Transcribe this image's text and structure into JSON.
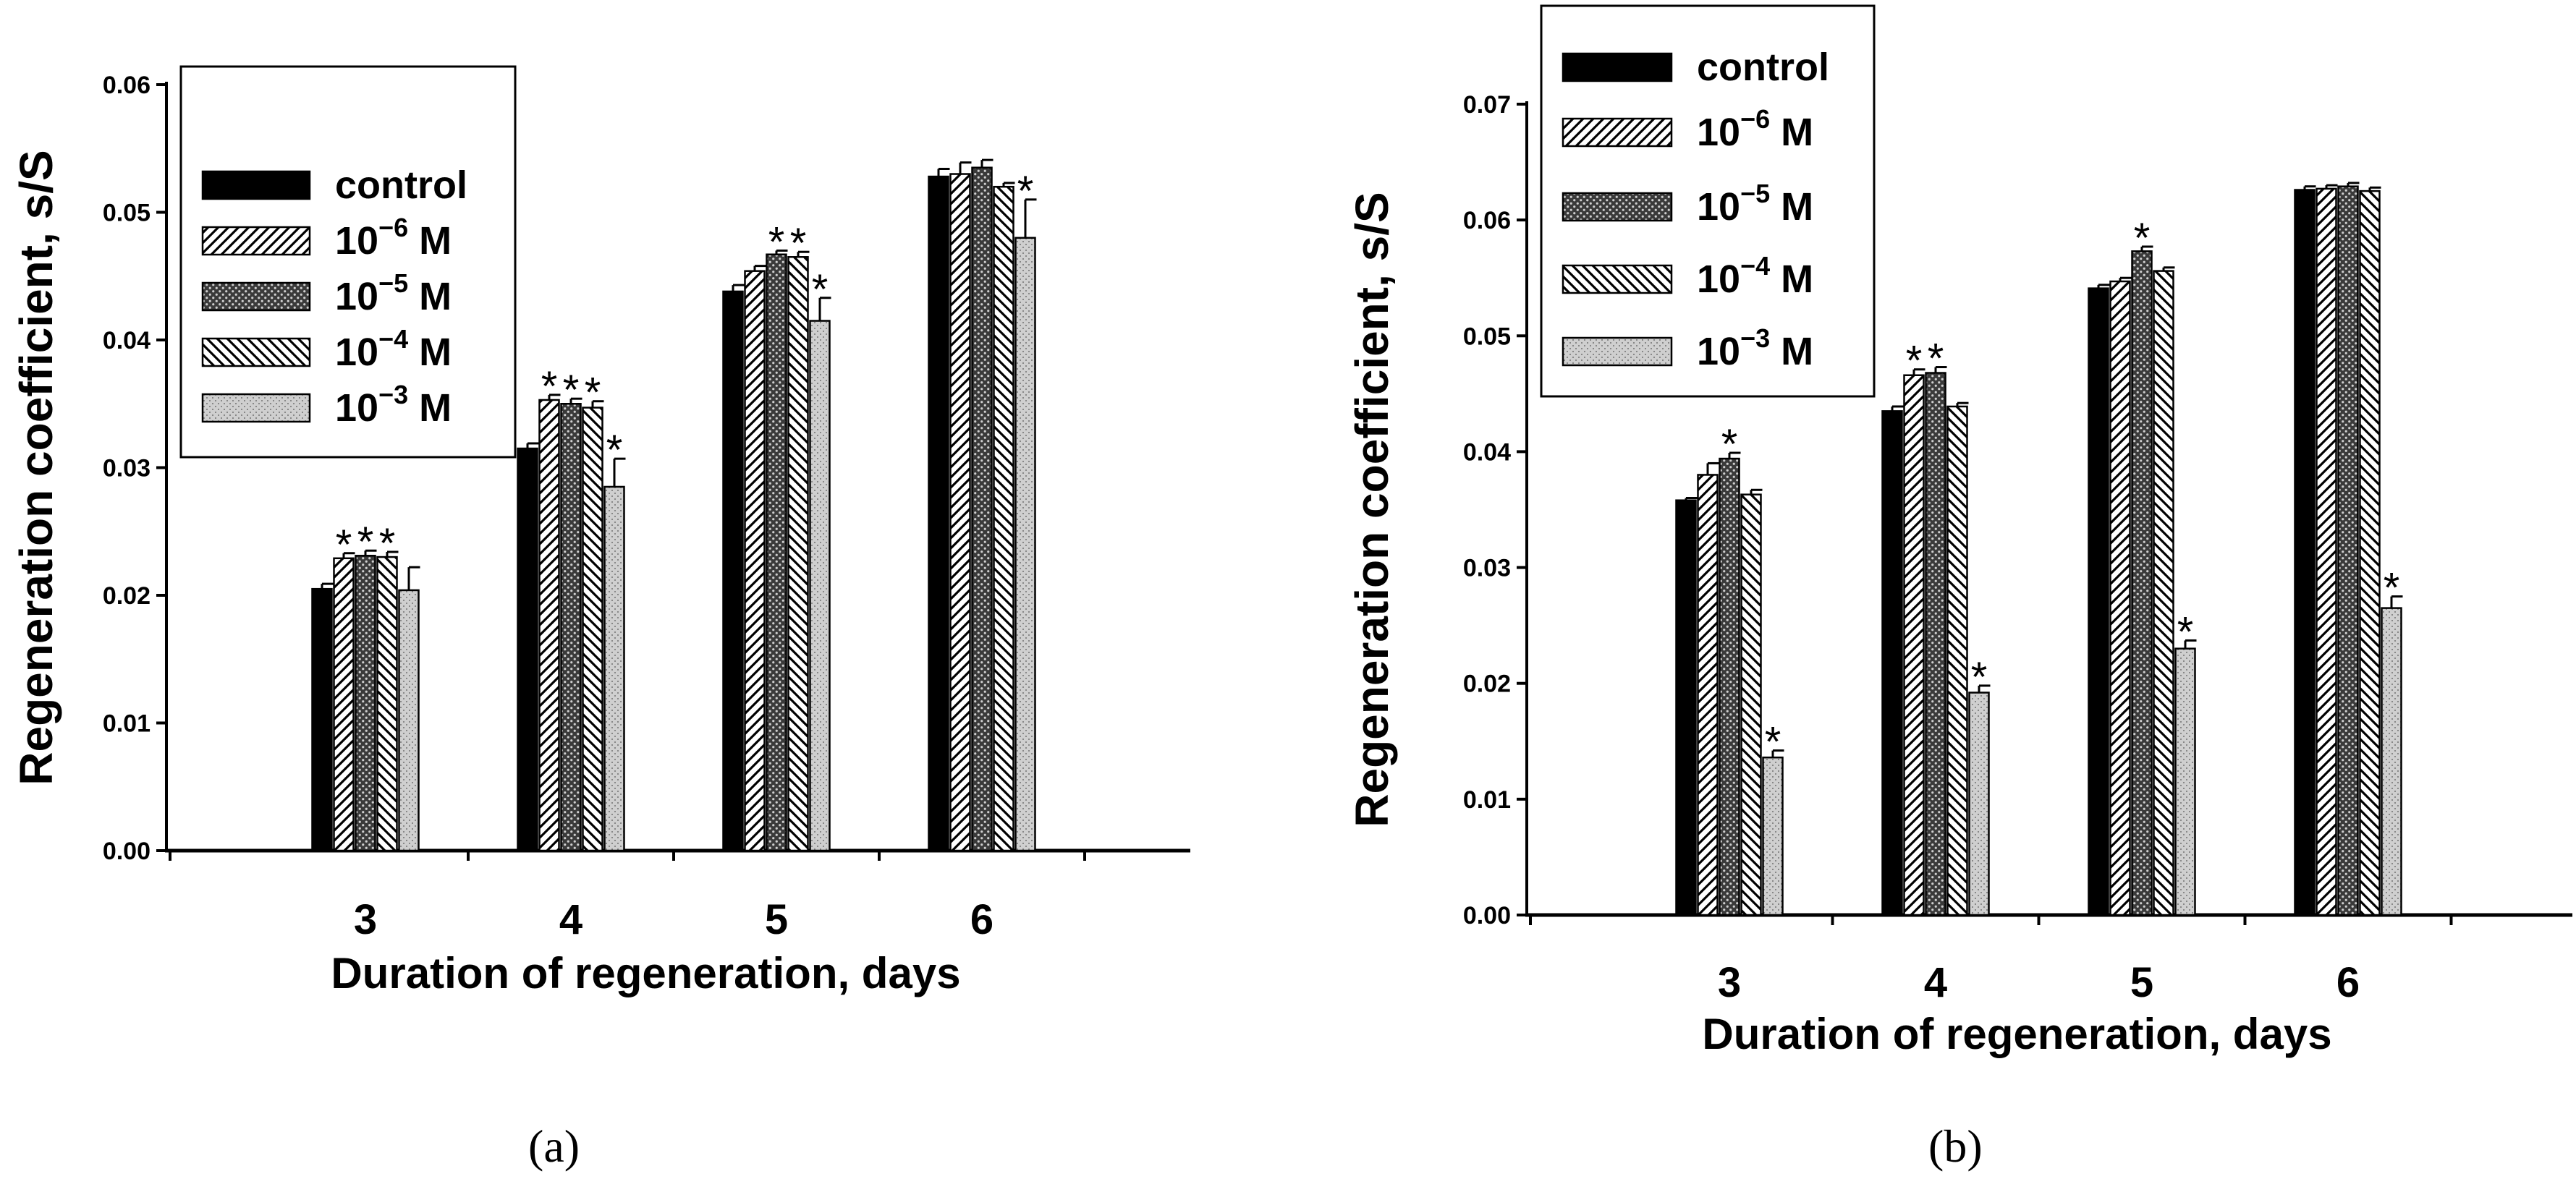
{
  "chart_data": [
    {
      "type": "bar",
      "panel": "(a)",
      "xlabel": "Duration of regeneration, days",
      "ylabel": "Regeneration coefficient, s/S",
      "categories": [
        "3",
        "4",
        "5",
        "6"
      ],
      "ylim": [
        0,
        0.06
      ],
      "yticks": [
        "0.00",
        "0.01",
        "0.02",
        "0.03",
        "0.04",
        "0.05",
        "0.06"
      ],
      "legend_position": "top-left",
      "series": [
        {
          "name": "control",
          "base": "10",
          "exp": "",
          "unit": "",
          "pattern": "solid",
          "values": [
            0.0205,
            0.0315,
            0.0438,
            0.0528
          ],
          "errors": [
            0.0004,
            0.0004,
            0.0005,
            0.0006
          ],
          "marks": [
            "",
            "",
            "",
            ""
          ]
        },
        {
          "name": "10^-6 M",
          "base": "10",
          "exp": "−6",
          "unit": " M",
          "pattern": "diag",
          "values": [
            0.0229,
            0.0353,
            0.0454,
            0.053
          ],
          "errors": [
            0.0004,
            0.0004,
            0.0004,
            0.0009
          ],
          "marks": [
            "*",
            "*",
            "",
            ""
          ]
        },
        {
          "name": "10^-5 M",
          "base": "10",
          "exp": "−5",
          "unit": " M",
          "pattern": "cross",
          "values": [
            0.0231,
            0.035,
            0.0467,
            0.0535
          ],
          "errors": [
            0.0004,
            0.0004,
            0.0003,
            0.0006
          ],
          "marks": [
            "*",
            "*",
            "*",
            ""
          ]
        },
        {
          "name": "10^-4 M",
          "base": "10",
          "exp": "−4",
          "unit": " M",
          "pattern": "anti",
          "values": [
            0.023,
            0.0347,
            0.0465,
            0.052
          ],
          "errors": [
            0.0004,
            0.0005,
            0.0004,
            0.0003
          ],
          "marks": [
            "*",
            "*",
            "*",
            ""
          ]
        },
        {
          "name": "10^-3 M",
          "base": "10",
          "exp": "−3",
          "unit": " M",
          "pattern": "dots",
          "values": [
            0.0204,
            0.0285,
            0.0415,
            0.048
          ],
          "errors": [
            0.0018,
            0.0022,
            0.0018,
            0.003
          ],
          "marks": [
            "",
            "*",
            "*",
            "*"
          ]
        }
      ]
    },
    {
      "type": "bar",
      "panel": "(b)",
      "xlabel": "Duration of regeneration, days",
      "ylabel": "Regeneration coefficient, s/S",
      "categories": [
        "3",
        "4",
        "5",
        "6"
      ],
      "ylim": [
        0,
        0.07
      ],
      "yticks": [
        "0.00",
        "0.01",
        "0.02",
        "0.03",
        "0.04",
        "0.05",
        "0.06",
        "0.07"
      ],
      "legend_position": "top-left",
      "series": [
        {
          "name": "control",
          "base": "10",
          "exp": "",
          "unit": "",
          "pattern": "solid",
          "values": [
            0.0358,
            0.0435,
            0.0541,
            0.0626
          ],
          "errors": [
            0.0002,
            0.0004,
            0.0003,
            0.0003
          ],
          "marks": [
            "",
            "",
            "",
            ""
          ]
        },
        {
          "name": "10^-6 M",
          "base": "10",
          "exp": "−6",
          "unit": " M",
          "pattern": "diag",
          "values": [
            0.038,
            0.0466,
            0.0547,
            0.0627
          ],
          "errors": [
            0.001,
            0.0005,
            0.0003,
            0.0003
          ],
          "marks": [
            "",
            "*",
            "",
            ""
          ]
        },
        {
          "name": "10^-5 M",
          "base": "10",
          "exp": "−5",
          "unit": " M",
          "pattern": "cross",
          "values": [
            0.0394,
            0.0468,
            0.0573,
            0.0629
          ],
          "errors": [
            0.0005,
            0.0005,
            0.0004,
            0.0003
          ],
          "marks": [
            "*",
            "*",
            "*",
            ""
          ]
        },
        {
          "name": "10^-4 M",
          "base": "10",
          "exp": "−4",
          "unit": " M",
          "pattern": "anti",
          "values": [
            0.0363,
            0.0439,
            0.0556,
            0.0625
          ],
          "errors": [
            0.0004,
            0.0003,
            0.0003,
            0.0003
          ],
          "marks": [
            "",
            "",
            "",
            ""
          ]
        },
        {
          "name": "10^-3 M",
          "base": "10",
          "exp": "−3",
          "unit": " M",
          "pattern": "dots",
          "values": [
            0.0136,
            0.0192,
            0.023,
            0.0265
          ],
          "errors": [
            0.0006,
            0.0006,
            0.0007,
            0.001
          ],
          "marks": [
            "*",
            "*",
            "*",
            "*"
          ]
        }
      ]
    }
  ]
}
